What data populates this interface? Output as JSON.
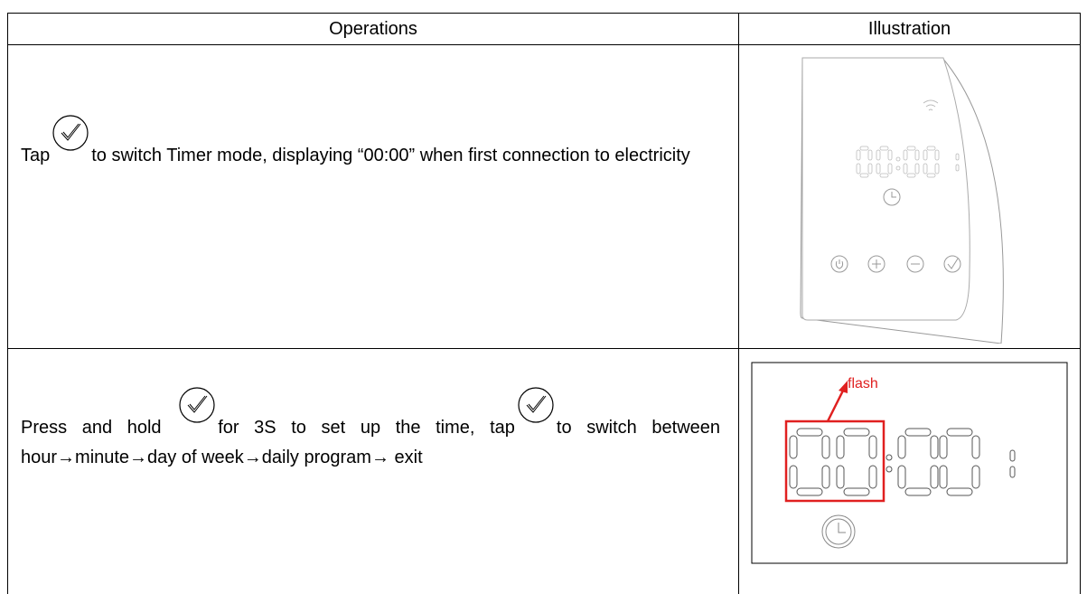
{
  "table": {
    "header": [
      "Operations",
      "Illustration"
    ],
    "rows": [
      {
        "text": [
          "Tap",
          "to switch Timer mode, displaying “00:00” when first connection to electricity"
        ]
      },
      {
        "text": [
          "Press and hold",
          "for 3S to set up the time, tap",
          "to switch between hour→minute→day of week→daily program→ exit"
        ],
        "annotation": "flash"
      }
    ]
  }
}
